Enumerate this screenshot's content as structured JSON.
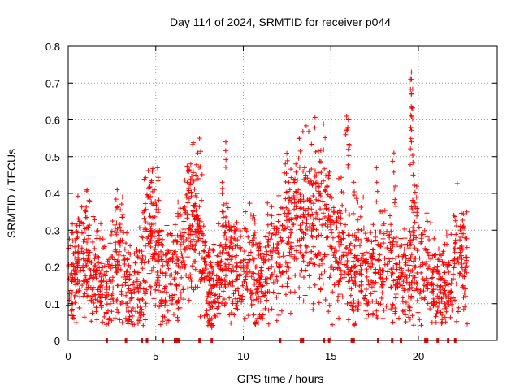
{
  "chart_data": {
    "type": "scatter",
    "title": "Day 114 of 2024, SRMTID for receiver p044",
    "xlabel": "GPS time / hours",
    "ylabel": "SRMTID / TECUs",
    "xlim": [
      0,
      24.5
    ],
    "ylim": [
      0,
      0.8
    ],
    "xticks": [
      0,
      5,
      10,
      15,
      20
    ],
    "xtick_labels": [
      "0",
      "5",
      "10",
      "15",
      "20"
    ],
    "yticks": [
      0,
      0.1,
      0.2,
      0.3,
      0.4,
      0.5,
      0.6,
      0.7,
      0.8
    ],
    "ytick_labels": [
      "0",
      "0.1",
      "0.2",
      "0.3",
      "0.4",
      "0.5",
      "0.6",
      "0.7",
      "0.8"
    ],
    "grid": true,
    "marker": "plus",
    "color": "#ff0000",
    "trend": [
      [
        0,
        0.15
      ],
      [
        0.5,
        0.2
      ],
      [
        0.9,
        0.24
      ],
      [
        1.3,
        0.2
      ],
      [
        1.8,
        0.17
      ],
      [
        2.2,
        0.12
      ],
      [
        2.6,
        0.2
      ],
      [
        3.0,
        0.22
      ],
      [
        3.5,
        0.13
      ],
      [
        4.0,
        0.12
      ],
      [
        4.6,
        0.3
      ],
      [
        5.0,
        0.24
      ],
      [
        5.5,
        0.16
      ],
      [
        6.0,
        0.2
      ],
      [
        6.5,
        0.24
      ],
      [
        7.0,
        0.33
      ],
      [
        7.5,
        0.3
      ],
      [
        8.0,
        0.13
      ],
      [
        8.5,
        0.14
      ],
      [
        9.0,
        0.25
      ],
      [
        9.5,
        0.2
      ],
      [
        10.0,
        0.18
      ],
      [
        10.5,
        0.2
      ],
      [
        11.0,
        0.14
      ],
      [
        11.5,
        0.2
      ],
      [
        12.0,
        0.24
      ],
      [
        12.5,
        0.28
      ],
      [
        13.0,
        0.3
      ],
      [
        13.5,
        0.33
      ],
      [
        14.0,
        0.36
      ],
      [
        14.5,
        0.35
      ],
      [
        15.0,
        0.28
      ],
      [
        15.5,
        0.25
      ],
      [
        16.0,
        0.23
      ],
      [
        16.3,
        0.17
      ],
      [
        16.7,
        0.22
      ],
      [
        17.0,
        0.17
      ],
      [
        17.5,
        0.2
      ],
      [
        18.0,
        0.22
      ],
      [
        18.5,
        0.2
      ],
      [
        19.0,
        0.17
      ],
      [
        19.5,
        0.2
      ],
      [
        19.8,
        0.28
      ],
      [
        20.0,
        0.17
      ],
      [
        20.5,
        0.2
      ],
      [
        21.0,
        0.14
      ],
      [
        21.5,
        0.15
      ],
      [
        22.0,
        0.2
      ],
      [
        22.4,
        0.25
      ],
      [
        22.8,
        0.2
      ]
    ],
    "peaks": [
      [
        0.4,
        0.24
      ],
      [
        0.6,
        0.33
      ],
      [
        1.0,
        0.35
      ],
      [
        1.5,
        0.25
      ],
      [
        2.8,
        0.41
      ],
      [
        3.1,
        0.39
      ],
      [
        4.8,
        0.46
      ],
      [
        5.1,
        0.47
      ],
      [
        6.4,
        0.36
      ],
      [
        6.8,
        0.43
      ],
      [
        7.0,
        0.48
      ],
      [
        7.4,
        0.51
      ],
      [
        7.5,
        0.55
      ],
      [
        9.0,
        0.54
      ],
      [
        8.8,
        0.43
      ],
      [
        9.3,
        0.3
      ],
      [
        10.6,
        0.34
      ],
      [
        12.4,
        0.48
      ],
      [
        12.6,
        0.43
      ],
      [
        13.0,
        0.48
      ],
      [
        13.2,
        0.55
      ],
      [
        13.5,
        0.47
      ],
      [
        14.3,
        0.4
      ],
      [
        14.8,
        0.42
      ],
      [
        15.9,
        0.61
      ],
      [
        16.0,
        0.6
      ],
      [
        16.0,
        0.52
      ],
      [
        16.3,
        0.43
      ],
      [
        17.6,
        0.47
      ],
      [
        18.6,
        0.51
      ],
      [
        18.7,
        0.42
      ],
      [
        19.6,
        0.73
      ],
      [
        19.6,
        0.71
      ],
      [
        19.6,
        0.67
      ],
      [
        19.6,
        0.61
      ],
      [
        19.6,
        0.54
      ],
      [
        19.7,
        0.45
      ],
      [
        19.9,
        0.42
      ],
      [
        22.4,
        0.31
      ]
    ],
    "lows": [
      [
        0.2,
        0.08
      ],
      [
        1.6,
        0.09
      ],
      [
        3.6,
        0.08
      ],
      [
        4.3,
        0.07
      ],
      [
        5.7,
        0.08
      ],
      [
        8.2,
        0.06
      ],
      [
        8.2,
        0.035
      ],
      [
        9.2,
        0.07
      ],
      [
        10.6,
        0.07
      ],
      [
        11.1,
        0.06
      ],
      [
        12.2,
        0.08
      ],
      [
        14.0,
        0.1
      ],
      [
        16.3,
        0.08
      ],
      [
        17.0,
        0.08
      ],
      [
        17.6,
        0.08
      ],
      [
        19.1,
        0.08
      ],
      [
        21.5,
        0.1
      ],
      [
        22.7,
        0.12
      ]
    ],
    "zero_markers": [
      2.2,
      3.3,
      4.2,
      4.5,
      5.4,
      6.1,
      6.2,
      6.3,
      7.5,
      8.2,
      12.1,
      13.3,
      13.4,
      14.6,
      14.9,
      16.2,
      16.3,
      17.7,
      18.5,
      19.0,
      20.4,
      20.5,
      21.1,
      21.7,
      22.1
    ]
  }
}
